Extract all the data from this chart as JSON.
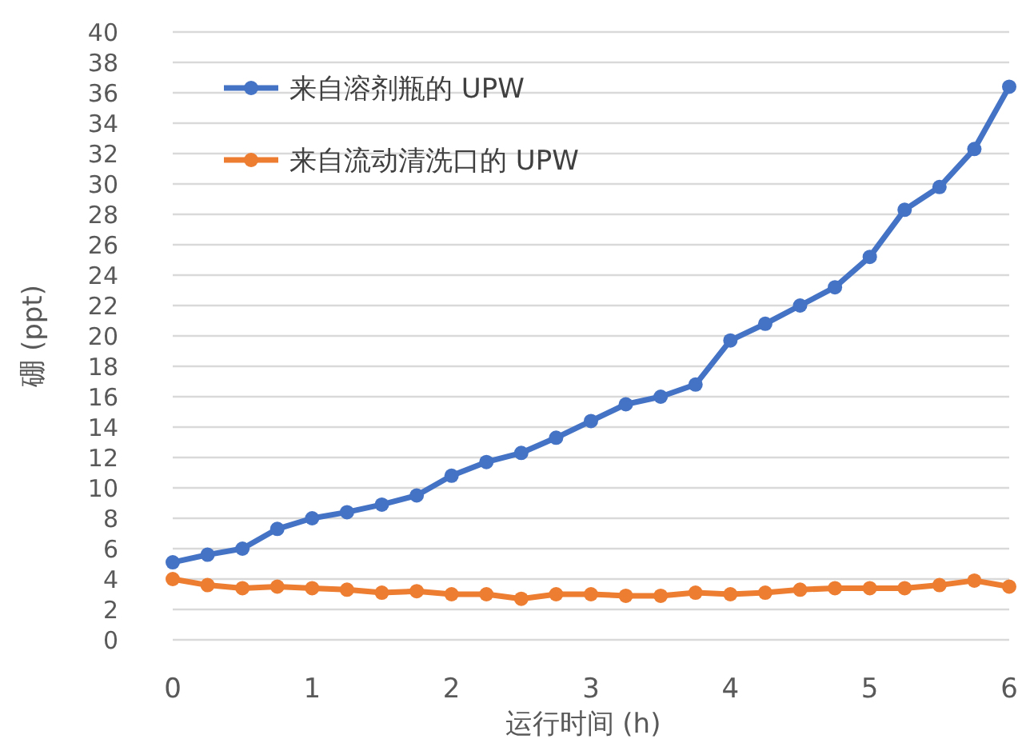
{
  "chart_data": {
    "type": "line",
    "xlabel": "运行时间 (h)",
    "ylabel": "硼 (ppt)",
    "x": [
      0,
      0.25,
      0.5,
      0.75,
      1,
      1.25,
      1.5,
      1.75,
      2,
      2.25,
      2.5,
      2.75,
      3,
      3.25,
      3.5,
      3.75,
      4,
      4.25,
      4.5,
      4.75,
      5,
      5.25,
      5.5,
      5.75,
      6
    ],
    "series": [
      {
        "name": "来自溶剂瓶的 UPW",
        "color": "#4472c4",
        "values": [
          5.1,
          5.6,
          6.0,
          7.3,
          8.0,
          8.4,
          8.9,
          9.5,
          10.8,
          11.7,
          12.3,
          13.3,
          14.4,
          15.5,
          16.0,
          16.8,
          19.7,
          20.8,
          22.0,
          23.2,
          25.2,
          28.3,
          29.8,
          32.3,
          36.4
        ]
      },
      {
        "name": "来自流动清洗口的 UPW",
        "color": "#ed7d31",
        "values": [
          4.0,
          3.6,
          3.4,
          3.5,
          3.4,
          3.3,
          3.1,
          3.2,
          3.0,
          3.0,
          2.7,
          3.0,
          3.0,
          2.9,
          2.9,
          3.1,
          3.0,
          3.1,
          3.3,
          3.4,
          3.4,
          3.4,
          3.6,
          3.9,
          3.5
        ]
      }
    ],
    "xlim": [
      0,
      6
    ],
    "xticks": [
      0,
      1,
      2,
      3,
      4,
      5,
      6
    ],
    "ylim": [
      0,
      40
    ],
    "yticks": [
      0,
      2,
      4,
      6,
      8,
      10,
      12,
      14,
      16,
      18,
      20,
      22,
      24,
      26,
      28,
      30,
      32,
      34,
      36,
      38,
      40
    ],
    "grid": "y",
    "legend": "top left",
    "marker": "circle",
    "line_style": "solid"
  }
}
